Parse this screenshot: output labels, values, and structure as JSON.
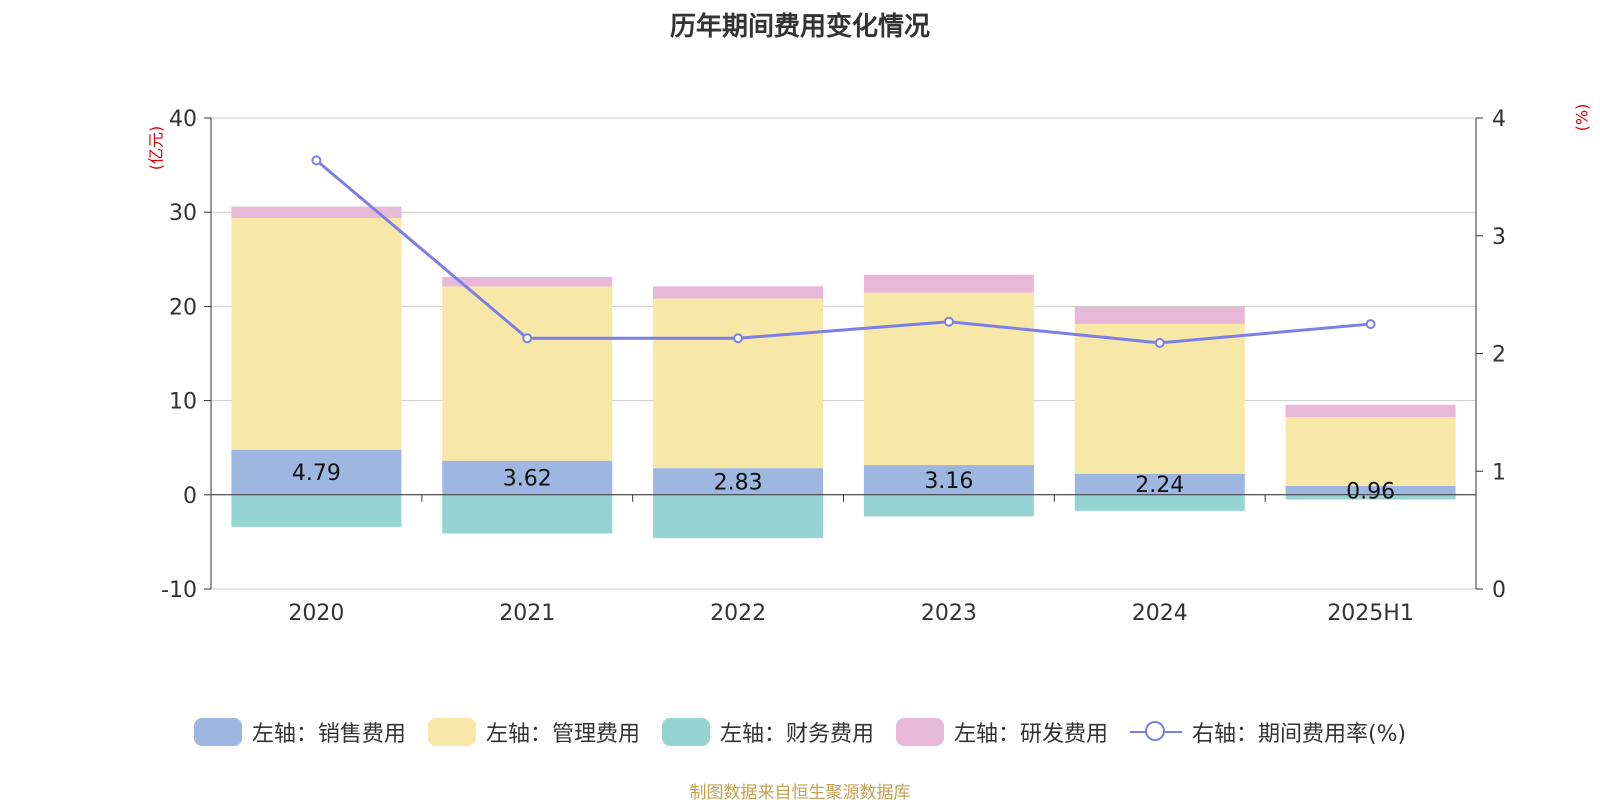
{
  "title": "历年期间费用变化情况",
  "unit_left": "(亿元)",
  "unit_right": "(%)",
  "source": "制图数据来自恒生聚源数据库",
  "colors": {
    "sales": "#9db7e0",
    "admin": "#f8e8a8",
    "finance": "#96d4d4",
    "rd": "#e8b8d8",
    "rate": "#7b7fe6",
    "grid": "#cccccc",
    "axis": "#333333"
  },
  "legend": [
    {
      "label": "左轴：销售费用",
      "kind": "bar",
      "color_key": "sales"
    },
    {
      "label": "左轴：管理费用",
      "kind": "bar",
      "color_key": "admin"
    },
    {
      "label": "左轴：财务费用",
      "kind": "bar",
      "color_key": "finance"
    },
    {
      "label": "左轴：研发费用",
      "kind": "bar",
      "color_key": "rd"
    },
    {
      "label": "右轴：期间费用率(%)",
      "kind": "line",
      "color_key": "rate"
    }
  ],
  "chart_data": {
    "type": "bar",
    "categories": [
      "2020",
      "2021",
      "2022",
      "2023",
      "2024",
      "2025H1"
    ],
    "series": [
      {
        "name": "左轴：销售费用",
        "axis": "left",
        "values": [
          4.79,
          3.62,
          2.83,
          3.16,
          2.24,
          0.96
        ],
        "show_labels": true
      },
      {
        "name": "左轴：管理费用",
        "axis": "left",
        "values": [
          24.6,
          18.5,
          18.0,
          18.3,
          15.9,
          7.3
        ],
        "show_labels": false
      },
      {
        "name": "左轴：财务费用",
        "axis": "left",
        "values": [
          -3.4,
          -4.1,
          -4.6,
          -2.3,
          -1.7,
          -0.5
        ],
        "show_labels": false
      },
      {
        "name": "左轴：研发费用",
        "axis": "left",
        "values": [
          1.2,
          1.0,
          1.3,
          1.9,
          1.8,
          1.3
        ],
        "show_labels": false
      },
      {
        "name": "右轴：期间费用率(%)",
        "axis": "right",
        "type": "line",
        "values": [
          3.64,
          2.13,
          2.13,
          2.27,
          2.09,
          2.25
        ]
      }
    ],
    "left_axis": {
      "min": -10,
      "max": 40,
      "ticks": [
        "-10",
        "0",
        "10",
        "20",
        "30",
        "40"
      ]
    },
    "right_axis": {
      "min": 0,
      "max": 4,
      "ticks": [
        "0",
        "1",
        "2",
        "3",
        "4"
      ]
    },
    "grid": true,
    "legend_position": "bottom"
  }
}
